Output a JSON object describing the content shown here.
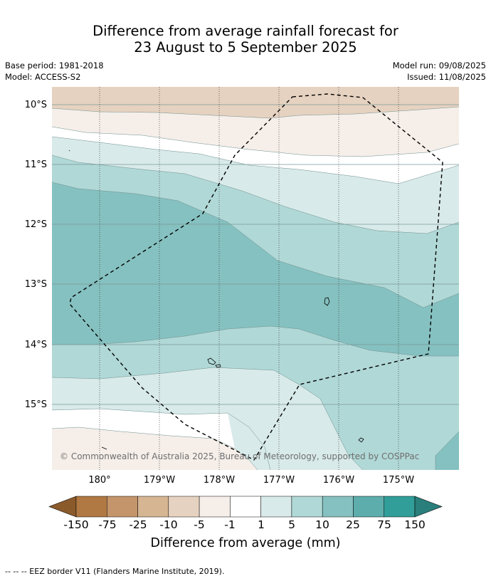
{
  "title": {
    "line1": "Difference from average rainfall forecast for",
    "line2": "23 August to 5 September 2025"
  },
  "meta": {
    "base_period": "Base period: 1981-2018",
    "model": "Model: ACCESS-S2",
    "model_run": "Model run: 09/08/2025",
    "issued": "Issued: 11/08/2025"
  },
  "map": {
    "lat_labels": [
      "10°S",
      "11°S",
      "12°S",
      "13°S",
      "14°S",
      "15°S"
    ],
    "lon_labels": [
      "180°",
      "179°W",
      "178°W",
      "177°W",
      "176°W",
      "175°W"
    ],
    "copyright": "© Commonwealth of Australia 2025, Bureau of Meteorology, supported by COSPPac"
  },
  "colorbar": {
    "labels": [
      "-150",
      "-75",
      "-25",
      "-10",
      "-5",
      "-1",
      "1",
      "5",
      "10",
      "25",
      "75",
      "150"
    ],
    "colors": [
      "#8b5a2b",
      "#b07842",
      "#c4956a",
      "#d6b593",
      "#e6d2c0",
      "#f5eee9",
      "#ffffff",
      "#d8eae9",
      "#b0d8d6",
      "#85c1c0",
      "#5dadac",
      "#319e9a",
      "#2a7f7c"
    ],
    "title": "Difference from average (mm)"
  },
  "footnote": "--  --  -- EEZ border V11 (Flanders Marine Institute, 2019)."
}
